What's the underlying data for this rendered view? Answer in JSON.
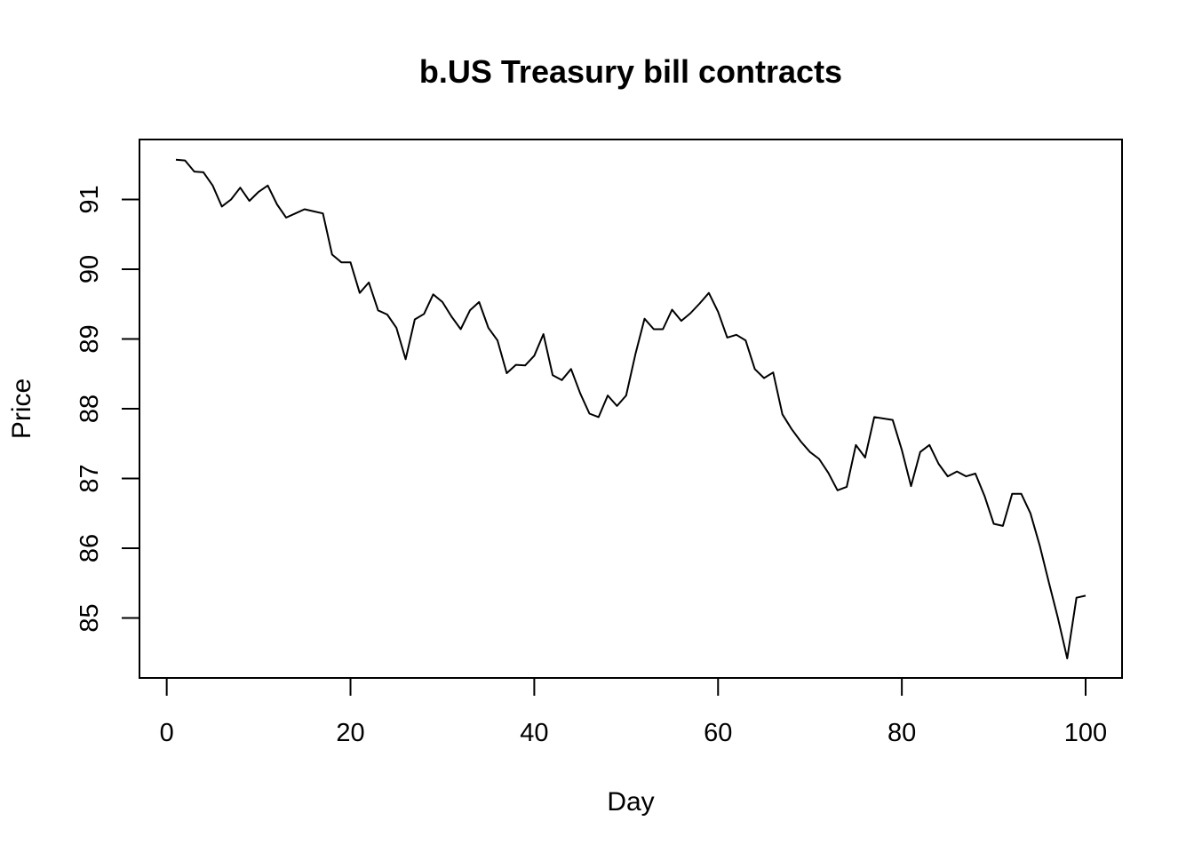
{
  "chart_data": {
    "type": "line",
    "title": "b.US Treasury bill contracts",
    "xlabel": "Day",
    "ylabel": "Price",
    "xlim": [
      1,
      100
    ],
    "ylim": [
      84.42,
      91.58
    ],
    "x_ticks": [
      0,
      20,
      40,
      60,
      80,
      100
    ],
    "y_ticks": [
      85,
      86,
      87,
      88,
      89,
      90,
      91
    ],
    "grid": false,
    "legend": "none",
    "line_color": "#000000",
    "x": [
      1,
      2,
      3,
      4,
      5,
      6,
      7,
      8,
      9,
      10,
      11,
      12,
      13,
      14,
      15,
      16,
      17,
      18,
      19,
      20,
      21,
      22,
      23,
      24,
      25,
      26,
      27,
      28,
      29,
      30,
      31,
      32,
      33,
      34,
      35,
      36,
      37,
      38,
      39,
      40,
      41,
      42,
      43,
      44,
      45,
      46,
      47,
      48,
      49,
      50,
      51,
      52,
      53,
      54,
      55,
      56,
      57,
      58,
      59,
      60,
      61,
      62,
      63,
      64,
      65,
      66,
      67,
      68,
      69,
      70,
      71,
      72,
      73,
      74,
      75,
      76,
      77,
      78,
      79,
      80,
      81,
      82,
      83,
      84,
      85,
      86,
      87,
      88,
      89,
      90,
      91,
      92,
      93,
      94,
      95,
      96,
      97,
      98,
      99,
      100
    ],
    "y": [
      91.57,
      91.56,
      91.4,
      91.39,
      91.2,
      90.9,
      91.0,
      91.17,
      90.98,
      91.11,
      91.2,
      90.93,
      90.74,
      90.8,
      90.86,
      90.83,
      90.8,
      90.21,
      90.1,
      90.1,
      89.66,
      89.81,
      89.41,
      89.35,
      89.16,
      88.71,
      89.28,
      89.36,
      89.64,
      89.53,
      89.32,
      89.14,
      89.41,
      89.53,
      89.16,
      88.98,
      88.51,
      88.63,
      88.62,
      88.76,
      89.07,
      88.48,
      88.41,
      88.57,
      88.22,
      87.93,
      87.88,
      88.19,
      88.04,
      88.19,
      88.78,
      89.29,
      89.14,
      89.14,
      89.42,
      89.26,
      89.37,
      89.51,
      89.66,
      89.39,
      89.02,
      89.06,
      88.98,
      88.57,
      88.44,
      88.52,
      87.92,
      87.71,
      87.53,
      87.38,
      87.28,
      87.08,
      86.83,
      86.88,
      87.48,
      87.3,
      87.88,
      87.86,
      87.84,
      87.41,
      86.89,
      87.38,
      87.48,
      87.21,
      87.03,
      87.1,
      87.03,
      87.07,
      86.75,
      86.35,
      86.32,
      86.78,
      86.78,
      86.5,
      86.04,
      85.51,
      84.99,
      84.42,
      85.29,
      85.32
    ]
  }
}
